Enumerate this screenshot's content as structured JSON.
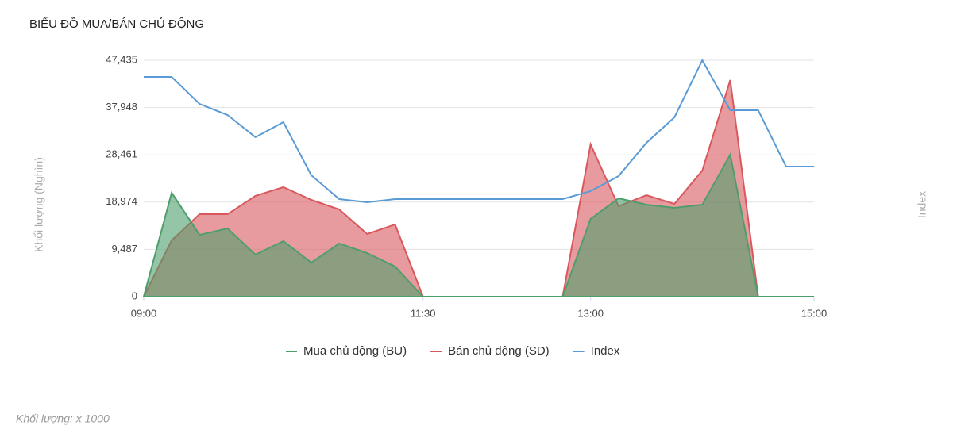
{
  "chart_data": {
    "type": "area",
    "title": "BIỂU ĐỒ MUA/BÁN CHỦ ĐỘNG",
    "ylabel": "Khối lượng (Nghìn)",
    "y2label": "Index",
    "note": "Khối lượng: x 1000",
    "x": [
      "09:00",
      "09:15",
      "09:30",
      "09:45",
      "10:00",
      "10:15",
      "10:30",
      "10:45",
      "11:00",
      "11:15",
      "11:30",
      "11:45",
      "12:00",
      "12:15",
      "12:30",
      "12:45",
      "13:00",
      "13:15",
      "13:30",
      "13:45",
      "14:00",
      "14:15",
      "14:30",
      "14:45",
      "15:00"
    ],
    "xlim": [
      "09:00",
      "15:00"
    ],
    "xticks": [
      "09:00",
      "11:30",
      "13:00",
      "15:00"
    ],
    "ylim": [
      0,
      47435
    ],
    "yticks": [
      0,
      {
        "value": 9487,
        "label": "9,487"
      },
      {
        "value": 18974,
        "label": "18,974"
      },
      {
        "value": 28461,
        "label": "28,461"
      },
      {
        "value": 37948,
        "label": "37,948"
      },
      {
        "value": 47435,
        "label": "47,435"
      }
    ],
    "y2lim": [
      0,
      47435
    ],
    "grid": true,
    "legend": "bottom",
    "series": [
      {
        "name": "Mua chủ động (BU)",
        "color": "#4e9e6c",
        "values": [
          0,
          20850,
          12400,
          13700,
          8440,
          11140,
          6840,
          10670,
          8750,
          6050,
          0,
          0,
          0,
          0,
          0,
          0,
          15600,
          19740,
          18470,
          17830,
          18470,
          28490,
          0,
          0,
          0
        ]
      },
      {
        "name": "Bán chủ động (SD)",
        "color": "#d9585d",
        "values": [
          0,
          11300,
          16550,
          16550,
          20220,
          21970,
          19420,
          17510,
          12580,
          14490,
          0,
          0,
          0,
          0,
          0,
          0,
          30560,
          18150,
          20370,
          18620,
          25310,
          43460,
          0,
          0,
          0
        ]
      },
      {
        "name": "Index",
        "color": "#5b9bd5",
        "axis": "y2",
        "values": [
          44090,
          44090,
          38680,
          36450,
          32000,
          35020,
          24350,
          19580,
          18940,
          19580,
          19580,
          19580,
          19580,
          19580,
          19580,
          19580,
          21170,
          24190,
          30880,
          35980,
          47435,
          37410,
          37410,
          26110,
          26110
        ]
      }
    ]
  }
}
